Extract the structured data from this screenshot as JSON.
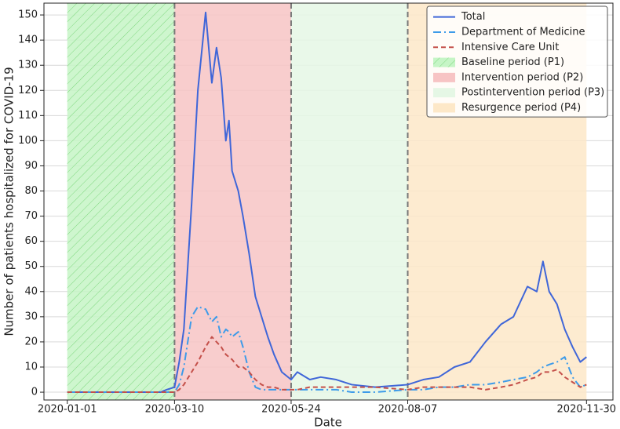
{
  "chart_data": {
    "type": "line",
    "x_label": "Date",
    "y_label": "Number of patients hospitalized for COVID-19",
    "x": [
      "2020-01-01",
      "2020-02-01",
      "2020-03-01",
      "2020-03-05",
      "2020-03-10",
      "2020-03-13",
      "2020-03-16",
      "2020-03-21",
      "2020-03-25",
      "2020-03-30",
      "2020-04-03",
      "2020-04-06",
      "2020-04-09",
      "2020-04-12",
      "2020-04-14",
      "2020-04-16",
      "2020-04-20",
      "2020-04-23",
      "2020-04-27",
      "2020-05-01",
      "2020-05-05",
      "2020-05-09",
      "2020-05-13",
      "2020-05-18",
      "2020-05-24",
      "2020-05-28",
      "2020-06-05",
      "2020-06-12",
      "2020-06-22",
      "2020-07-02",
      "2020-07-17",
      "2020-08-07",
      "2020-08-17",
      "2020-08-27",
      "2020-09-06",
      "2020-09-16",
      "2020-09-26",
      "2020-10-06",
      "2020-10-14",
      "2020-10-23",
      "2020-10-29",
      "2020-11-02",
      "2020-11-06",
      "2020-11-11",
      "2020-11-16",
      "2020-11-21",
      "2020-11-26",
      "2020-11-30"
    ],
    "series": [
      {
        "name": "Total",
        "color": "#3f66d8",
        "linestyle": "solid",
        "values": [
          0,
          0,
          0,
          1,
          2,
          12,
          25,
          75,
          120,
          151,
          123,
          137,
          125,
          100,
          108,
          88,
          80,
          70,
          55,
          38,
          30,
          22,
          15,
          8,
          5,
          8,
          5,
          6,
          5,
          3,
          2,
          3,
          5,
          6,
          10,
          12,
          20,
          27,
          30,
          42,
          40,
          52,
          40,
          35,
          25,
          18,
          12,
          14
        ]
      },
      {
        "name": "Department of Medicine",
        "color": "#3d9be9",
        "linestyle": "dashdot",
        "values": [
          0,
          0,
          0,
          0,
          0,
          3,
          10,
          30,
          34,
          33,
          28,
          30,
          22,
          25,
          24,
          22,
          24,
          18,
          8,
          2,
          1,
          1,
          1,
          1,
          1,
          1,
          1,
          1,
          1,
          0,
          0,
          1,
          1,
          2,
          2,
          3,
          3,
          4,
          5,
          6,
          8,
          10,
          11,
          12,
          14,
          6,
          2,
          3
        ]
      },
      {
        "name": "Intensive Care Unit",
        "color": "#c4504a",
        "linestyle": "dashed",
        "values": [
          0,
          0,
          0,
          0,
          0,
          1,
          3,
          8,
          12,
          18,
          22,
          20,
          18,
          15,
          14,
          13,
          10,
          10,
          8,
          5,
          3,
          2,
          2,
          1,
          1,
          1,
          2,
          2,
          2,
          2,
          2,
          1,
          2,
          2,
          2,
          2,
          1,
          2,
          3,
          5,
          6,
          8,
          8,
          9,
          6,
          4,
          2,
          3
        ]
      }
    ],
    "periods": [
      {
        "name": "Baseline period (P1)",
        "start": "2020-01-01",
        "end": "2020-03-10",
        "color": "#c6f5c6",
        "hatch": true
      },
      {
        "name": "Intervention period (P2)",
        "start": "2020-03-10",
        "end": "2020-05-24",
        "color": "#f7c4c4",
        "hatch": false
      },
      {
        "name": "Postintervention period (P3)",
        "start": "2020-05-24",
        "end": "2020-08-07",
        "color": "#e5f7e5",
        "hatch": false
      },
      {
        "name": "Resurgence period (P4)",
        "start": "2020-08-07",
        "end": "2020-11-30",
        "color": "#fde8c8",
        "hatch": false
      }
    ],
    "xlim": [
      "2019-12-17",
      "2020-12-17"
    ],
    "xticks": [
      "2020-01-01",
      "2020-03-10",
      "2020-05-24",
      "2020-08-07",
      "2020-11-30"
    ],
    "ylim": [
      -3.1,
      154.7
    ],
    "yticks": [
      0,
      10,
      20,
      30,
      40,
      50,
      60,
      70,
      80,
      90,
      100,
      110,
      120,
      130,
      140,
      150
    ],
    "grid": true,
    "legend": "upper right"
  }
}
